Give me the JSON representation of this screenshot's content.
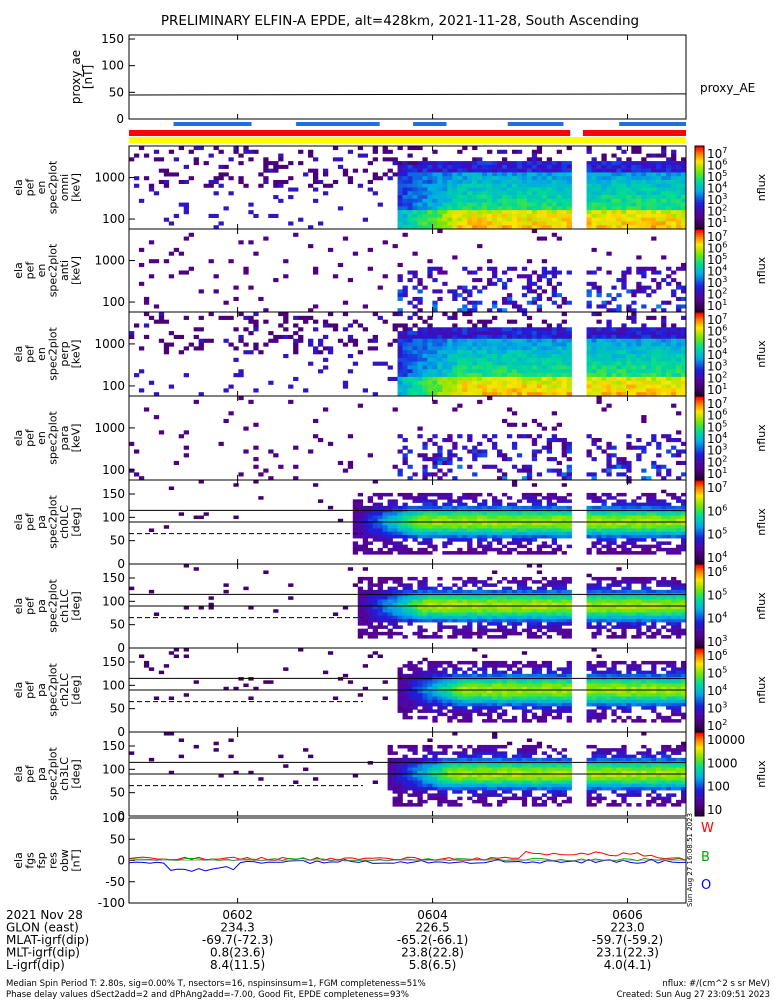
{
  "title": "PRELIMINARY ELFIN-A EPDE, alt=428km, 2021-11-28, South Ascending",
  "proxy_panel": {
    "ylabel": [
      "proxy_ae",
      "[nT]"
    ],
    "yticks": [
      "150",
      "100",
      "50",
      "0"
    ],
    "ylim": [
      0,
      150
    ],
    "series_label": "proxy_AE",
    "values": [
      {
        "x": 0.0,
        "y": 45
      },
      {
        "x": 0.5,
        "y": 46
      },
      {
        "x": 1.0,
        "y": 47
      }
    ]
  },
  "spectro_panels": [
    {
      "ylabel": [
        "ela",
        "pef",
        "en",
        "spec2plot",
        "omni",
        "[keV]"
      ],
      "yticks": [
        "1000",
        "100"
      ],
      "cbar_ticks": [
        "10^7",
        "10^6",
        "10^5",
        "10^4",
        "10^3",
        "10^2",
        "10^1"
      ],
      "cbar_label": "nflux",
      "kind": "energy",
      "onset": 0.48
    },
    {
      "ylabel": [
        "ela",
        "pef",
        "en",
        "spec2plot",
        "anti",
        "[keV]"
      ],
      "yticks": [
        "1000",
        "100"
      ],
      "cbar_ticks": [
        "10^7",
        "10^6",
        "10^5",
        "10^4",
        "10^3",
        "10^2",
        "10^1"
      ],
      "cbar_label": "nflux",
      "kind": "sparse",
      "onset": 0.48
    },
    {
      "ylabel": [
        "ela",
        "pef",
        "en",
        "spec2plot",
        "perp",
        "[keV]"
      ],
      "yticks": [
        "1000",
        "100"
      ],
      "cbar_ticks": [
        "10^7",
        "10^6",
        "10^5",
        "10^4",
        "10^3",
        "10^2",
        "10^1"
      ],
      "cbar_label": "nflux",
      "kind": "energy",
      "onset": 0.48
    },
    {
      "ylabel": [
        "ela",
        "pef",
        "en",
        "spec2plot",
        "para",
        "[keV]"
      ],
      "yticks": [
        "1000",
        "100"
      ],
      "cbar_ticks": [
        "10^7",
        "10^6",
        "10^5",
        "10^4",
        "10^3",
        "10^2",
        "10^1"
      ],
      "cbar_label": "nflux",
      "kind": "sparse",
      "onset": 0.48
    },
    {
      "ylabel": [
        "ela",
        "pef",
        "pa",
        "spec2plot",
        "ch0LC",
        "[deg]"
      ],
      "yticks": [
        "150",
        "100",
        "50",
        "0"
      ],
      "cbar_ticks": [
        "10^7",
        "10^6",
        "10^5",
        "10^4"
      ],
      "cbar_label": "nflux",
      "kind": "pa",
      "onset": 0.4
    },
    {
      "ylabel": [
        "ela",
        "pef",
        "pa",
        "spec2plot",
        "ch1LC",
        "[deg]"
      ],
      "yticks": [
        "150",
        "100",
        "50",
        "0"
      ],
      "cbar_ticks": [
        "10^6",
        "10^5",
        "10^4",
        "10^3"
      ],
      "cbar_label": "nflux",
      "kind": "pa",
      "onset": 0.41
    },
    {
      "ylabel": [
        "ela",
        "pef",
        "pa",
        "spec2plot",
        "ch2LC",
        "[deg]"
      ],
      "yticks": [
        "150",
        "100",
        "50",
        "0"
      ],
      "cbar_ticks": [
        "10^6",
        "10^5",
        "10^4",
        "10^3",
        "10^2"
      ],
      "cbar_label": "nflux",
      "kind": "pa",
      "onset": 0.48
    },
    {
      "ylabel": [
        "ela",
        "pef",
        "pa",
        "spec2plot",
        "ch3LC",
        "[deg]"
      ],
      "yticks": [
        "150",
        "100",
        "50",
        "0"
      ],
      "cbar_ticks": [
        "10000",
        "1000",
        "100",
        "10"
      ],
      "cbar_label": "nflux",
      "kind": "pa",
      "onset": 0.46
    }
  ],
  "res_panel": {
    "ylabel": [
      "ela",
      "fgs",
      "fsp",
      "res",
      "obw",
      "[nT]"
    ],
    "yticks": [
      "100",
      "50",
      "0",
      "-50",
      "-100"
    ],
    "ylim": [
      -100,
      100
    ],
    "legend": [
      {
        "name": "W",
        "color": "#ff0000"
      },
      {
        "name": "B",
        "color": "#00aa00"
      },
      {
        "name": "O",
        "color": "#0000ff"
      }
    ],
    "timestamp": "Sun Aug 27 16:08:51 2023"
  },
  "x_axis": {
    "ticks": [
      {
        "label": "0602",
        "pos": 0.195
      },
      {
        "label": "0604",
        "pos": 0.545
      },
      {
        "label": "0606",
        "pos": 0.895
      }
    ],
    "rows": [
      {
        "name": "2021 Nov 28",
        "v": [
          "",
          "",
          ""
        ]
      },
      {
        "name": "GLON (east)",
        "v": [
          "234.3",
          "226.5",
          "223.0"
        ]
      },
      {
        "name": "MLAT-igrf(dip)",
        "v": [
          "-69.7(-72.3)",
          "-65.2(-66.1)",
          "-59.7(-59.2)"
        ]
      },
      {
        "name": "MLT-igrf(dip)",
        "v": [
          "0.8(23.6)",
          "23.8(22.8)",
          "23.1(22.3)"
        ]
      },
      {
        "name": "L-igrf(dip)",
        "v": [
          "8.4(11.5)",
          "5.8(6.5)",
          "4.0(4.1)"
        ]
      }
    ]
  },
  "footer": {
    "line1_left": "Median Spin Period T: 2.80s, sig=0.00% T, nsectors=16, nspinsinsum=1, FGM completeness=51%",
    "line2_left": "Phase delay values dSect2add=2 and dPhAng2add=-7.00, Good Fit, EPDE completeness=93%",
    "line1_right": "nflux: #/(cm^2 s sr MeV)",
    "line2_right": "Created: Sun Aug 27 23:09:51 2023"
  },
  "chart_data": {
    "type": "heatmap",
    "title": "PRELIMINARY ELFIN-A EPDE, alt=428km, 2021-11-28, South Ascending",
    "x_ticks": [
      "0602",
      "0604",
      "0606"
    ],
    "proxy_ae": {
      "ylabel": "proxy_ae [nT]",
      "ylim": [
        0,
        150
      ],
      "approx_value": 46,
      "legend": "proxy_AE"
    },
    "energy_panels_ylabel_units": "keV",
    "pa_panels_ylabel_units": "deg",
    "pa_ylim": [
      0,
      180
    ],
    "residual_ylim": [
      -100,
      100
    ],
    "residual_legend": [
      "W",
      "B",
      "O"
    ]
  },
  "colors": {
    "axis": "#000000",
    "red_bar": "#ff0000",
    "blue_bar": "#1e6fe0",
    "yellow_bar": "#ffff00"
  }
}
